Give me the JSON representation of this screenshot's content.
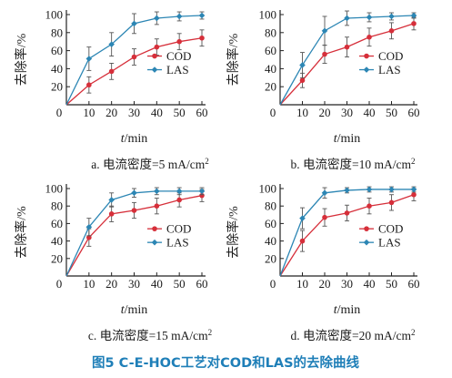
{
  "chart_data": [
    {
      "type": "line",
      "caption": "a. 电流密度=5 mA/cm",
      "caption_sup": "2",
      "ylabel": "去除率/%",
      "xlabel_italic": "t",
      "xlabel_unit": "/min",
      "x": [
        0,
        10,
        20,
        30,
        40,
        50,
        60
      ],
      "xticks": [
        0,
        10,
        20,
        30,
        40,
        50,
        60
      ],
      "xtick_labels": [
        "0",
        "10",
        "20",
        "30",
        "40",
        "50",
        "60"
      ],
      "yticks": [
        20,
        40,
        60,
        80,
        100
      ],
      "ylim": [
        0,
        100
      ],
      "xlim": [
        0,
        60
      ],
      "legend_position": "middle-right",
      "series": [
        {
          "name": "COD",
          "values": [
            0,
            22,
            37,
            53,
            64,
            70,
            74
          ],
          "err": [
            0,
            9,
            9,
            9,
            9,
            9,
            9
          ]
        },
        {
          "name": "LAS",
          "values": [
            0,
            51,
            67,
            90,
            96,
            98,
            99
          ],
          "err": [
            0,
            13,
            13,
            11,
            7,
            5,
            4
          ]
        }
      ]
    },
    {
      "type": "line",
      "caption": "b. 电流密度=10 mA/cm",
      "caption_sup": "2",
      "ylabel": "去除率/%",
      "xlabel_italic": "t",
      "xlabel_unit": "/min",
      "x": [
        0,
        10,
        20,
        30,
        40,
        50,
        60
      ],
      "xticks": [
        0,
        10,
        20,
        30,
        40,
        50,
        60
      ],
      "xtick_labels": [
        "0",
        "10",
        "20",
        "30",
        "40",
        "50",
        "60"
      ],
      "yticks": [
        20,
        40,
        60,
        80,
        100
      ],
      "ylim": [
        0,
        100
      ],
      "xlim": [
        0,
        60
      ],
      "legend_position": "middle-right",
      "series": [
        {
          "name": "COD",
          "values": [
            0,
            27,
            56,
            64,
            75,
            82,
            90
          ],
          "err": [
            0,
            8,
            10,
            11,
            10,
            9,
            7
          ]
        },
        {
          "name": "LAS",
          "values": [
            0,
            44,
            82,
            96,
            97,
            98,
            99
          ],
          "err": [
            0,
            14,
            16,
            8,
            5,
            4,
            3
          ]
        }
      ]
    },
    {
      "type": "line",
      "caption": "c. 电流密度=15 mA/cm",
      "caption_sup": "2",
      "ylabel": "去除率/%",
      "xlabel_italic": "t",
      "xlabel_unit": "/min",
      "x": [
        0,
        10,
        20,
        30,
        40,
        50,
        60
      ],
      "xticks": [
        0,
        10,
        20,
        30,
        40,
        50,
        60
      ],
      "xtick_labels": [
        "0",
        "10",
        "20",
        "30",
        "40",
        "50",
        "60"
      ],
      "yticks": [
        20,
        40,
        60,
        80,
        100
      ],
      "ylim": [
        0,
        100
      ],
      "xlim": [
        0,
        60
      ],
      "legend_position": "middle-right",
      "series": [
        {
          "name": "COD",
          "values": [
            0,
            44,
            71,
            75,
            80,
            87,
            92
          ],
          "err": [
            0,
            10,
            9,
            9,
            9,
            8,
            7
          ]
        },
        {
          "name": "LAS",
          "values": [
            0,
            56,
            87,
            95,
            97,
            97,
            97
          ],
          "err": [
            0,
            10,
            8,
            5,
            4,
            4,
            4
          ]
        }
      ]
    },
    {
      "type": "line",
      "caption": "d. 电流密度=20 mA/cm",
      "caption_sup": "2",
      "ylabel": "去除率/%",
      "xlabel_italic": "t",
      "xlabel_unit": "/min",
      "x": [
        0,
        10,
        20,
        30,
        40,
        50,
        60
      ],
      "xticks": [
        0,
        10,
        20,
        30,
        40,
        50,
        60
      ],
      "xtick_labels": [
        "0",
        "10",
        "20",
        "30",
        "40",
        "50",
        "60"
      ],
      "yticks": [
        20,
        40,
        60,
        80,
        100
      ],
      "ylim": [
        0,
        100
      ],
      "xlim": [
        0,
        60
      ],
      "legend_position": "middle-right",
      "series": [
        {
          "name": "COD",
          "values": [
            0,
            40,
            67,
            72,
            80,
            84,
            93
          ],
          "err": [
            0,
            12,
            10,
            9,
            9,
            9,
            7
          ]
        },
        {
          "name": "LAS",
          "values": [
            0,
            66,
            95,
            98,
            99,
            99,
            99
          ],
          "err": [
            0,
            12,
            6,
            3,
            3,
            3,
            3
          ]
        }
      ]
    }
  ],
  "colors": {
    "COD": "#d62f3a",
    "LAS": "#2c86b4",
    "axis": "#222222",
    "error_bar": "#555555",
    "figure_title": "#1f7fb8"
  },
  "figure_title": "图5   C-E-HOC工艺对COD和LAS的去除曲线"
}
